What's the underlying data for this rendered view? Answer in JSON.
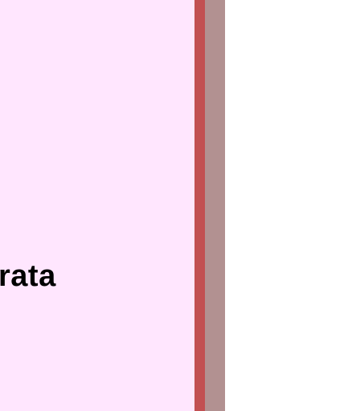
{
  "panel": {
    "visible_text": "rata"
  },
  "colors": {
    "panel_background": "#ffe6fe",
    "border": "#c25052",
    "shadow": "#b29191",
    "page_background": "#ffffff",
    "text": "#000000"
  }
}
